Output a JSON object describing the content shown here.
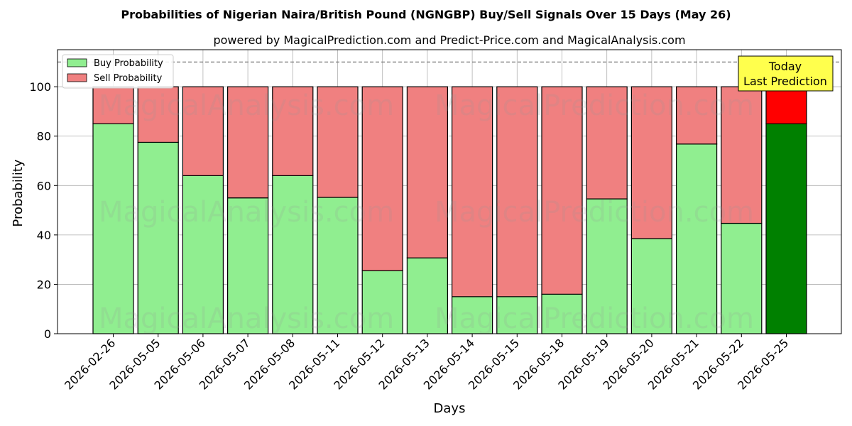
{
  "chart_data": {
    "type": "bar",
    "stacked": true,
    "title": "Probabilities of Nigerian Naira/British Pound (NGNGBP) Buy/Sell Signals Over 15 Days (May 26)",
    "subtitle": "powered by MagicalPrediction.com and Predict-Price.com and MagicalAnalysis.com",
    "xlabel": "Days",
    "ylabel": "Probability",
    "ylim": [
      0,
      115
    ],
    "yticks": [
      0,
      20,
      40,
      60,
      80,
      100
    ],
    "grid": true,
    "legend_position": "top-left",
    "reference_line": 110,
    "categories": [
      "2026-02-26",
      "2026-05-05",
      "2026-05-06",
      "2026-05-07",
      "2026-05-08",
      "2026-05-11",
      "2026-05-12",
      "2026-05-13",
      "2026-05-14",
      "2026-05-15",
      "2026-05-18",
      "2026-05-19",
      "2026-05-20",
      "2026-05-21",
      "2026-05-22",
      "2026-05-25"
    ],
    "series": [
      {
        "name": "Buy Probability",
        "values": [
          85,
          77.5,
          64,
          55,
          64,
          55.2,
          25.5,
          30.7,
          15,
          15,
          16,
          54.6,
          38.5,
          76.8,
          44.7,
          85
        ],
        "color": "#90ee90",
        "highlight_color": "#008000"
      },
      {
        "name": "Sell Probability",
        "values": [
          15,
          22.5,
          36,
          45,
          36,
          44.8,
          74.5,
          69.3,
          85,
          85,
          84,
          45.4,
          61.5,
          23.2,
          55.3,
          15
        ],
        "color": "#f08080",
        "highlight_color": "#ff0000"
      }
    ],
    "highlight_index": 15,
    "annotation": {
      "lines": [
        "Today",
        "Last Prediction"
      ],
      "bg": "#ffff4d"
    },
    "watermarks": [
      "MagicalAnalysis.com",
      "MagicalPrediction.com"
    ]
  }
}
